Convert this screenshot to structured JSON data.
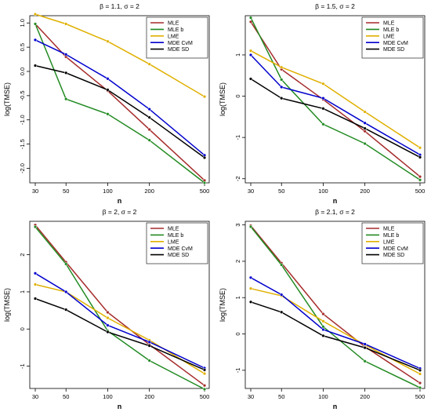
{
  "chart_data": [
    {
      "type": "line",
      "title": "β = 1.1, σ = 2",
      "xlabel": "n",
      "ylabel": "log(TMSE)",
      "categories": [
        "30",
        "50",
        "100",
        "200",
        "500"
      ],
      "ylim": [
        -2.3,
        1.15
      ],
      "yticks": [
        1.0,
        0.5,
        0.0,
        -0.5,
        -1.0,
        -1.5,
        -2.0
      ],
      "ytick_labels": [
        "1.0",
        "0.5",
        "0.0",
        "-0.5",
        "-1.0",
        "-1.5",
        "-2.0"
      ],
      "legend_position": "top-right",
      "series": [
        {
          "name": "MLE",
          "color": "#a52a2a",
          "values": [
            0.98,
            0.3,
            -0.4,
            -1.2,
            -2.25
          ]
        },
        {
          "name": "MLE b",
          "color": "#228b22",
          "values": [
            0.98,
            -0.57,
            -0.88,
            -1.42,
            -2.3
          ]
        },
        {
          "name": "LME",
          "color": "#e0b000",
          "values": [
            1.18,
            0.98,
            0.62,
            0.15,
            -0.52
          ]
        },
        {
          "name": "MDE CvM",
          "color": "#0000cd",
          "values": [
            0.65,
            0.35,
            -0.15,
            -0.78,
            -1.73
          ]
        },
        {
          "name": "MDE SD",
          "color": "#000000",
          "values": [
            0.12,
            -0.03,
            -0.38,
            -0.95,
            -1.78
          ]
        }
      ]
    },
    {
      "type": "line",
      "title": "β = 1.5, σ = 2",
      "xlabel": "n",
      "ylabel": "log(TMSE)",
      "categories": [
        "30",
        "50",
        "100",
        "200",
        "500"
      ],
      "ylim": [
        -2.1,
        1.95
      ],
      "yticks": [
        1,
        0,
        -1,
        -2
      ],
      "ytick_labels": [
        "1",
        "0",
        "-1",
        "-2"
      ],
      "legend_position": "top-right",
      "series": [
        {
          "name": "MLE",
          "color": "#a52a2a",
          "values": [
            1.8,
            0.65,
            -0.08,
            -0.85,
            -1.95
          ]
        },
        {
          "name": "MLE b",
          "color": "#228b22",
          "values": [
            1.9,
            0.4,
            -0.68,
            -1.15,
            -2.03
          ]
        },
        {
          "name": "LME",
          "color": "#e0b000",
          "values": [
            1.1,
            0.7,
            0.3,
            -0.38,
            -1.25
          ]
        },
        {
          "name": "MDE CvM",
          "color": "#0000cd",
          "values": [
            1.0,
            0.22,
            -0.05,
            -0.65,
            -1.42
          ]
        },
        {
          "name": "MDE SD",
          "color": "#000000",
          "values": [
            0.42,
            -0.05,
            -0.3,
            -0.78,
            -1.48
          ]
        }
      ]
    },
    {
      "type": "line",
      "title": "β = 2, σ = 2",
      "xlabel": "n",
      "ylabel": "log(TMSE)",
      "categories": [
        "30",
        "50",
        "100",
        "200",
        "500"
      ],
      "ylim": [
        -1.6,
        2.9
      ],
      "yticks": [
        2,
        1,
        0,
        -1
      ],
      "ytick_labels": [
        "2",
        "1",
        "0",
        "-1"
      ],
      "legend_position": "top-right",
      "series": [
        {
          "name": "MLE",
          "color": "#a52a2a",
          "values": [
            2.8,
            1.8,
            0.45,
            -0.42,
            -1.52
          ]
        },
        {
          "name": "MLE b",
          "color": "#228b22",
          "values": [
            2.75,
            1.75,
            -0.05,
            -0.85,
            -1.62
          ]
        },
        {
          "name": "LME",
          "color": "#e0b000",
          "values": [
            1.2,
            1.0,
            0.3,
            -0.3,
            -1.2
          ]
        },
        {
          "name": "MDE CvM",
          "color": "#0000cd",
          "values": [
            1.5,
            1.0,
            0.1,
            -0.35,
            -1.05
          ]
        },
        {
          "name": "MDE SD",
          "color": "#000000",
          "values": [
            0.82,
            0.52,
            -0.08,
            -0.45,
            -1.1
          ]
        }
      ]
    },
    {
      "type": "line",
      "title": "β = 2.1, σ = 2",
      "xlabel": "n",
      "ylabel": "log(TMSE)",
      "categories": [
        "30",
        "50",
        "100",
        "200",
        "500"
      ],
      "ylim": [
        -1.5,
        3.1
      ],
      "yticks": [
        3,
        2,
        1,
        0,
        -1
      ],
      "ytick_labels": [
        "3",
        "2",
        "1",
        "0",
        "-1"
      ],
      "legend_position": "top-right",
      "series": [
        {
          "name": "MLE",
          "color": "#a52a2a",
          "values": [
            2.98,
            1.95,
            0.55,
            -0.35,
            -1.35
          ]
        },
        {
          "name": "MLE b",
          "color": "#228b22",
          "values": [
            2.95,
            1.9,
            0.2,
            -0.75,
            -1.48
          ]
        },
        {
          "name": "LME",
          "color": "#e0b000",
          "values": [
            1.25,
            1.05,
            0.35,
            -0.3,
            -1.1
          ]
        },
        {
          "name": "MDE CvM",
          "color": "#0000cd",
          "values": [
            1.55,
            1.08,
            0.12,
            -0.28,
            -0.95
          ]
        },
        {
          "name": "MDE SD",
          "color": "#000000",
          "values": [
            0.88,
            0.6,
            -0.05,
            -0.38,
            -1.0
          ]
        }
      ]
    }
  ]
}
